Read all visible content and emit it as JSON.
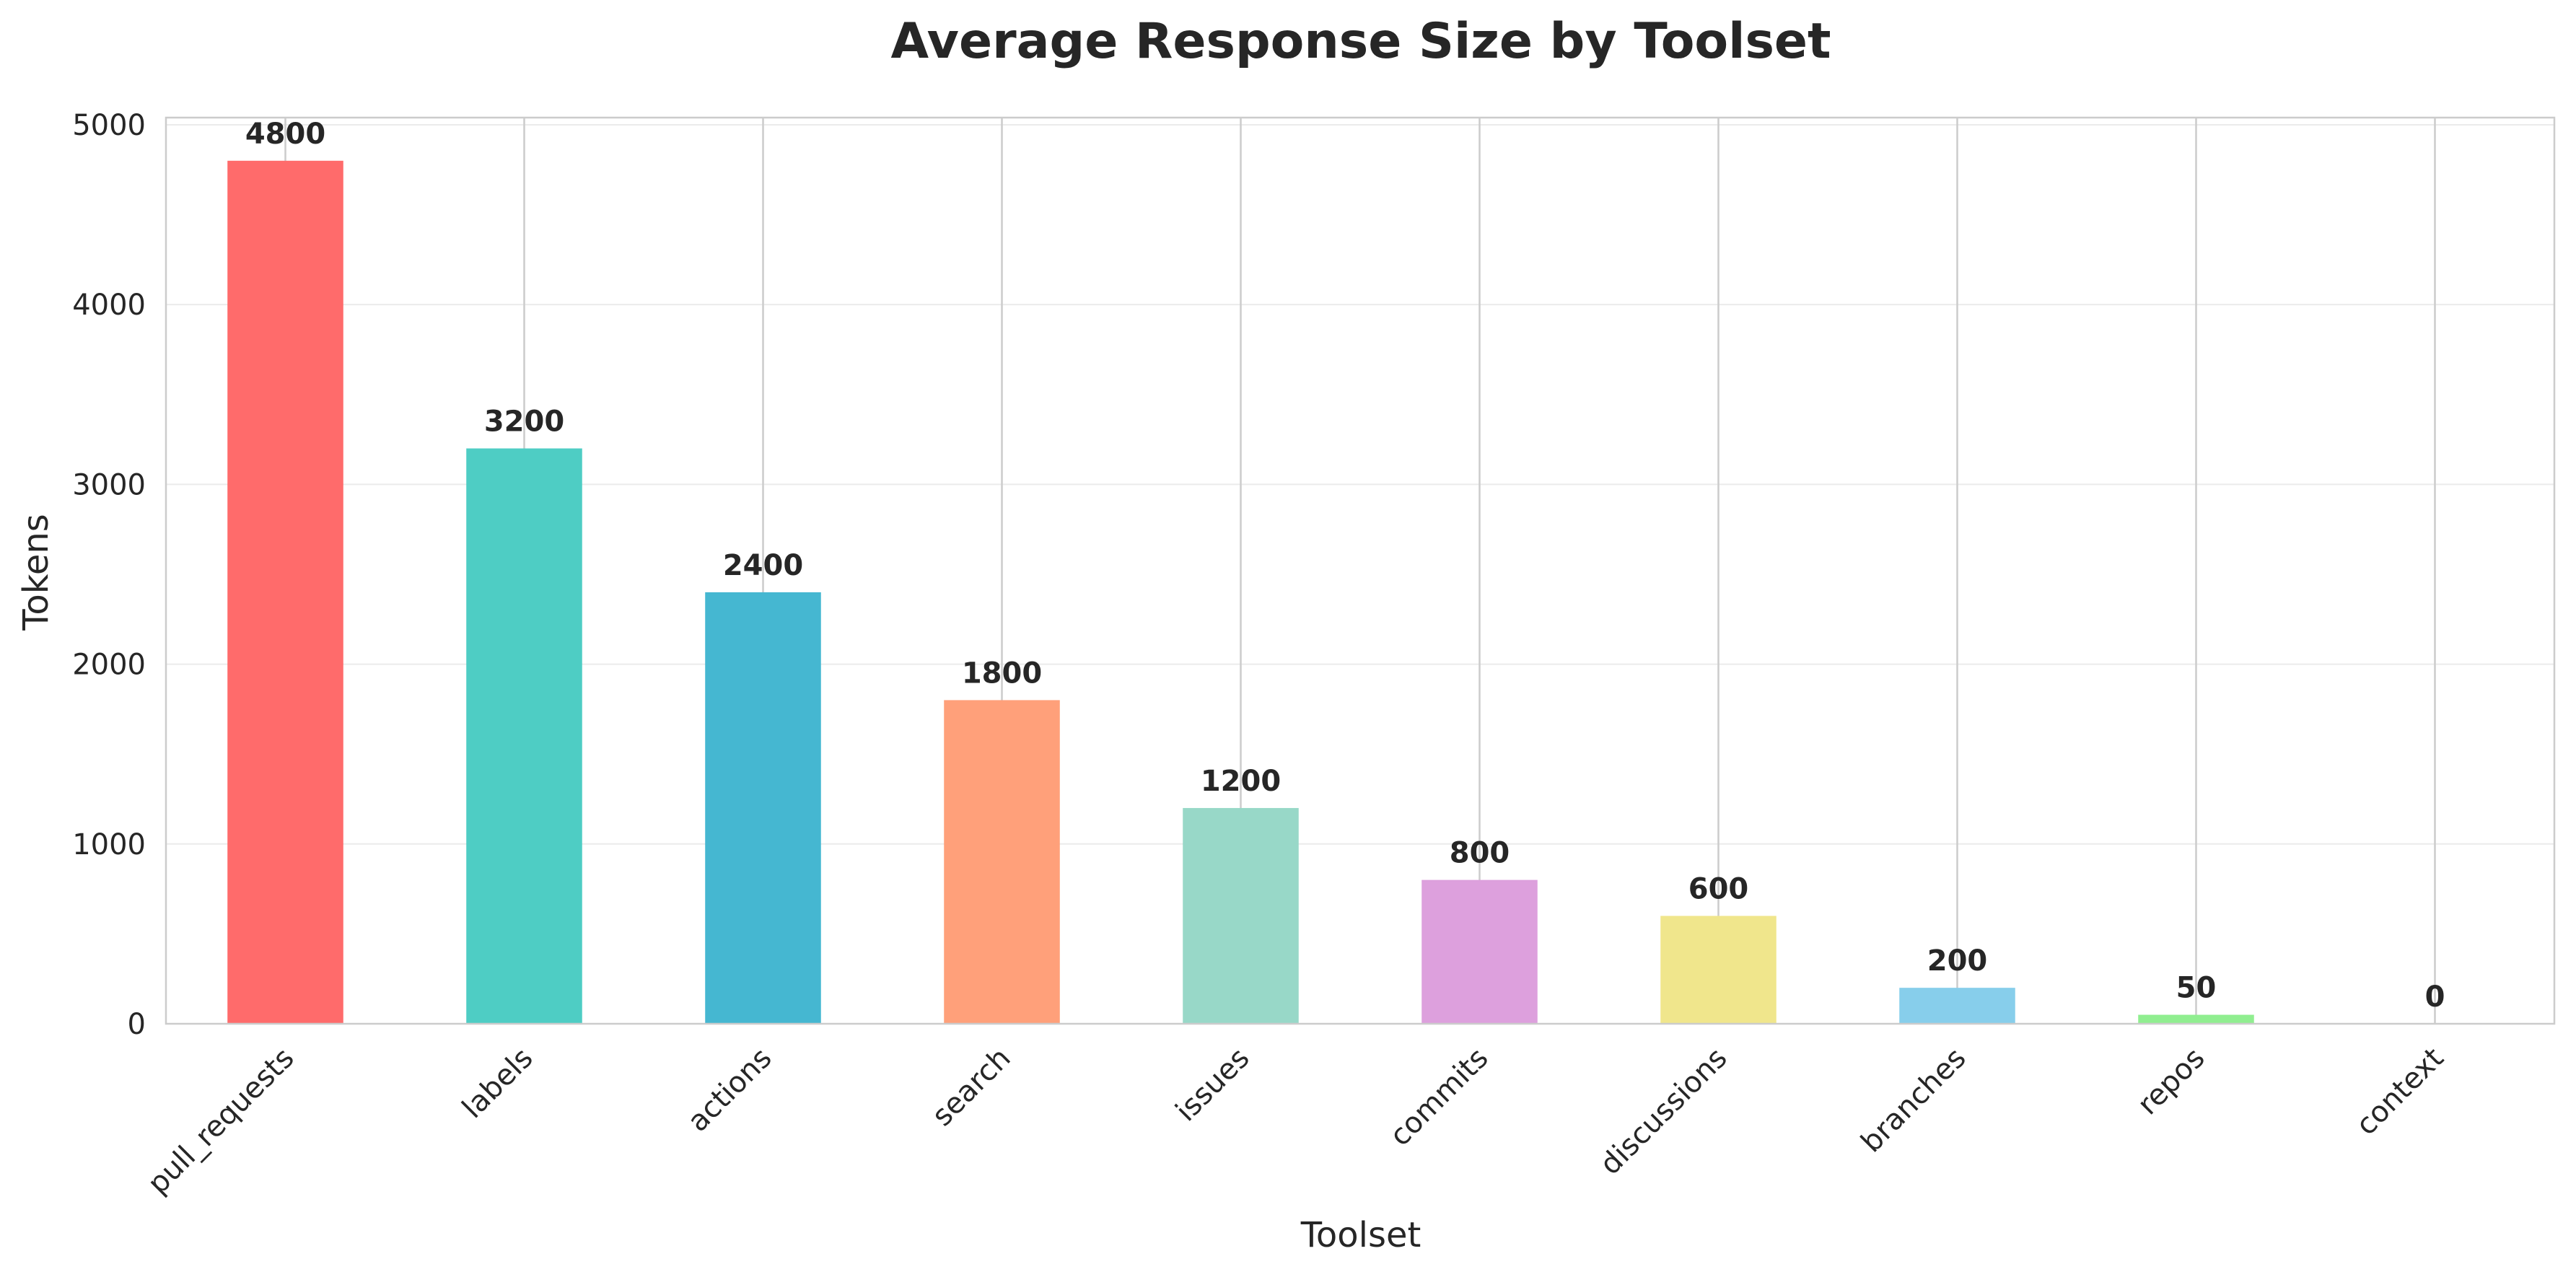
{
  "chart_data": {
    "type": "bar",
    "title": "Average Response Size by Toolset",
    "xlabel": "Toolset",
    "ylabel": "Tokens",
    "categories": [
      "pull_requests",
      "labels",
      "actions",
      "search",
      "issues",
      "commits",
      "discussions",
      "branches",
      "repos",
      "context"
    ],
    "values": [
      4800,
      3200,
      2400,
      1800,
      1200,
      800,
      600,
      200,
      50,
      0
    ],
    "colors": [
      "#FF6B6B",
      "#4ECDC4",
      "#45B7D1",
      "#FFA07A",
      "#98D8C8",
      "#DDA0DD",
      "#F0E68C",
      "#87CEEB",
      "#90EE90",
      "#D3D3D3"
    ],
    "data_labels": [
      "4800",
      "3200",
      "2400",
      "1800",
      "1200",
      "800",
      "600",
      "200",
      "50",
      "0"
    ],
    "yticks": [
      0,
      1000,
      2000,
      3000,
      4000,
      5000
    ],
    "ytick_labels": [
      "0",
      "1000",
      "2000",
      "3000",
      "4000",
      "5000"
    ],
    "ylim": [
      0,
      5040
    ],
    "grid": true
  }
}
